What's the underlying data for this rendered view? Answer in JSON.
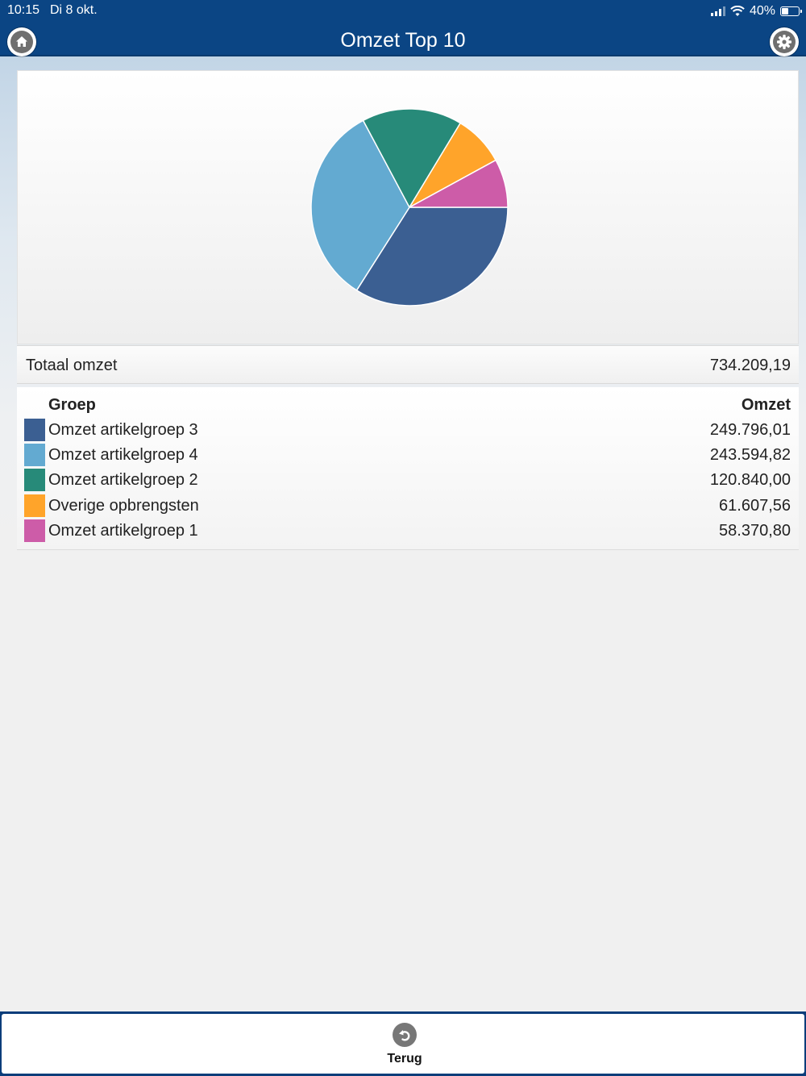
{
  "status_bar": {
    "time": "10:15",
    "date": "Di 8 okt.",
    "battery": "40%",
    "battery_level": 0.4
  },
  "header": {
    "title": "Omzet Top 10",
    "home_icon": "home-icon",
    "settings_icon": "gear-icon"
  },
  "chart_data": {
    "type": "pie",
    "categories": [
      "Omzet artikelgroep 3",
      "Omzet artikelgroep 4",
      "Omzet artikelgroep 2",
      "Overige opbrengsten",
      "Omzet artikelgroep 1"
    ],
    "values": [
      249796.01,
      243594.82,
      120840.0,
      61607.56,
      58370.8
    ],
    "colors": [
      "#3b5f92",
      "#63aad1",
      "#278a79",
      "#ffa42a",
      "#cd5ca8"
    ]
  },
  "total": {
    "label": "Totaal omzet",
    "value": "734.209,19"
  },
  "table": {
    "header_group": "Groep",
    "header_value": "Omzet",
    "rows": [
      {
        "label": "Omzet artikelgroep 3",
        "value": "249.796,01",
        "color": "#3b5f92"
      },
      {
        "label": "Omzet artikelgroep 4",
        "value": "243.594,82",
        "color": "#63aad1"
      },
      {
        "label": "Omzet artikelgroep 2",
        "value": "120.840,00",
        "color": "#278a79"
      },
      {
        "label": "Overige opbrengsten",
        "value": "61.607,56",
        "color": "#ffa42a"
      },
      {
        "label": "Omzet artikelgroep 1",
        "value": "58.370,80",
        "color": "#cd5ca8"
      }
    ]
  },
  "toolbar": {
    "back_label": "Terug",
    "back_icon": "undo-arrow-icon"
  }
}
